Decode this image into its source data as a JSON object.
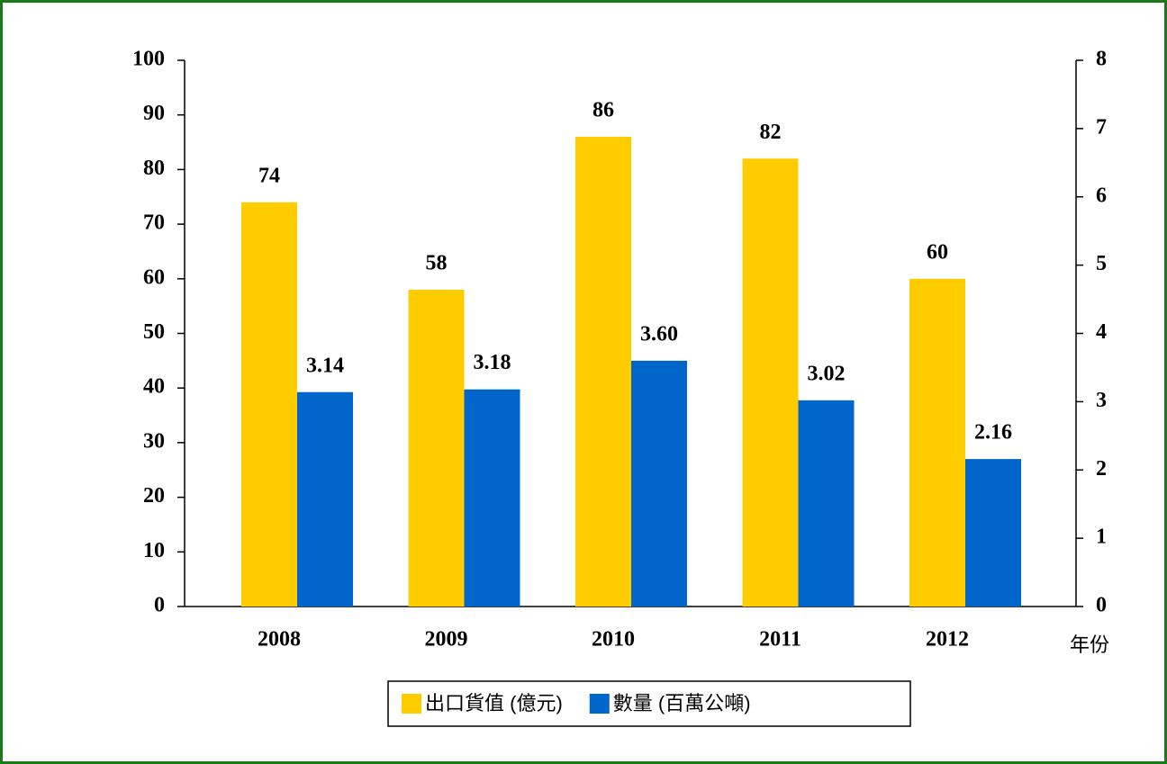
{
  "chart_data": {
    "type": "bar",
    "categories": [
      "2008",
      "2009",
      "2010",
      "2011",
      "2012"
    ],
    "x_label": "年份",
    "series": [
      {
        "name": "出口貨值 (億元)",
        "color": "#ffcc00",
        "values": [
          74,
          58,
          86,
          82,
          60
        ]
      },
      {
        "name": "數量 (百萬公噸)",
        "color": "#0066cc",
        "axis": "y2",
        "values": [
          3.14,
          3.18,
          3.6,
          3.02,
          2.16
        ],
        "value_labels": [
          "3.14",
          "3.18",
          "3.60",
          "3.02",
          "2.16"
        ]
      }
    ],
    "ylim": [
      0,
      100
    ],
    "yticks": [
      0,
      10,
      20,
      30,
      40,
      50,
      60,
      70,
      80,
      90,
      100
    ],
    "y2lim": [
      0,
      8
    ],
    "y2ticks": [
      0,
      1,
      2,
      3,
      4,
      5,
      6,
      7,
      8
    ],
    "legend": "bottom"
  }
}
